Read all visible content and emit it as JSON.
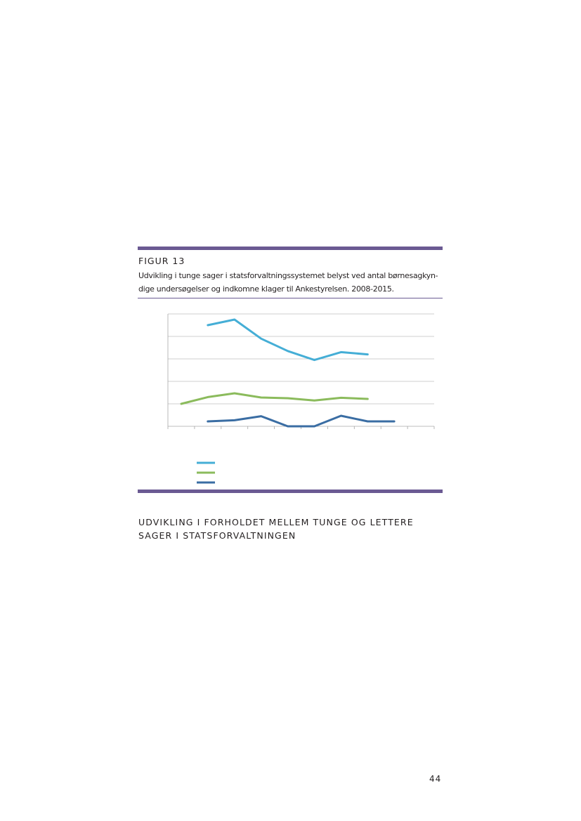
{
  "figure": {
    "label": "FIGUR 13",
    "caption": "Udvikling i tunge sager i statsforvaltningssystemet belyst ved antal børnesagkyn-dige undersøgelser og indkomne klager til Ankestyrelsen. 2008-2015."
  },
  "chart_data": {
    "type": "line",
    "title": "",
    "xlabel": "",
    "ylabel": "",
    "ylim": [
      0,
      5
    ],
    "x": [
      0,
      1,
      2,
      3,
      4,
      5,
      6,
      7,
      8,
      9
    ],
    "grid": true,
    "series": [
      {
        "color": "#45aed6",
        "values": [
          null,
          4.5,
          4.75,
          3.9,
          3.35,
          2.95,
          3.3,
          3.2,
          null,
          null
        ]
      },
      {
        "color": "#8bbb5c",
        "values": [
          1.0,
          1.3,
          1.47,
          1.28,
          1.25,
          1.15,
          1.27,
          1.22,
          null,
          null
        ]
      },
      {
        "color": "#3a6da3",
        "values": [
          null,
          0.22,
          0.27,
          0.45,
          0.0,
          0.0,
          0.47,
          0.22,
          0.22,
          null
        ]
      }
    ]
  },
  "section": {
    "heading": "UDVIKLING I FORHOLDET MELLEM TUNGE OG LETTERE SAGER I STATSFORVALTNINGEN"
  },
  "page_number": "44"
}
